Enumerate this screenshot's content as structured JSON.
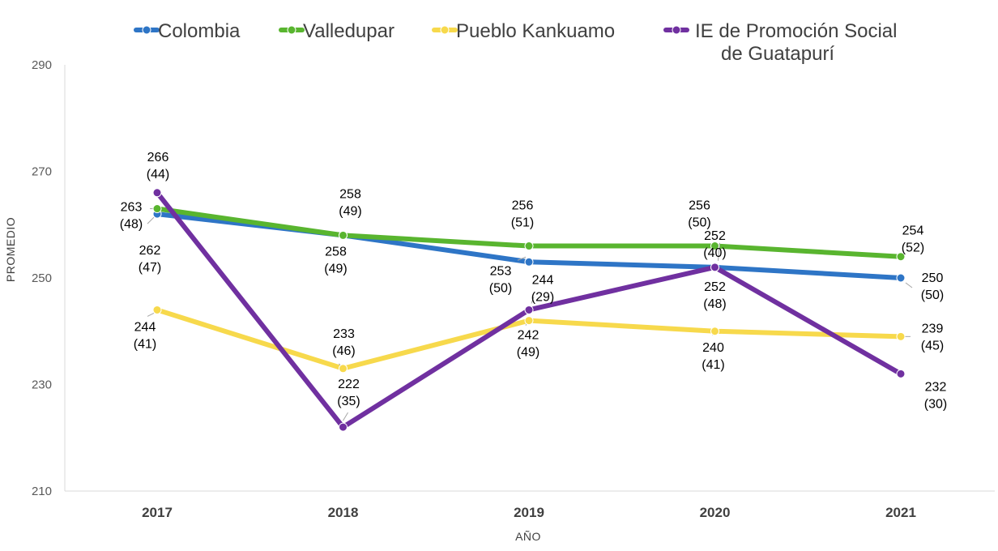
{
  "chart_data": {
    "type": "line",
    "xlabel": "AÑO",
    "ylabel": "PROMEDIO",
    "categories": [
      "2017",
      "2018",
      "2019",
      "2020",
      "2021"
    ],
    "ylim": [
      210,
      290
    ],
    "yticks": [
      210,
      230,
      250,
      270,
      290
    ],
    "grid": false,
    "legend_position": "top",
    "series": [
      {
        "name": "Colombia",
        "color": "#2E75C6",
        "values": [
          262,
          258,
          253,
          252,
          250
        ],
        "labels": [
          [
            "262",
            "(47)"
          ],
          [
            "258",
            "(49)"
          ],
          [
            "253",
            "(50)"
          ],
          [
            "252",
            "(40)"
          ],
          [
            "250",
            "(50)"
          ]
        ]
      },
      {
        "name": "Valledupar",
        "color": "#59B52F",
        "values": [
          263,
          258,
          256,
          256,
          254
        ],
        "labels": [
          [
            "263",
            "(48)"
          ],
          [
            "258",
            "(49)"
          ],
          [
            "256",
            "(51)"
          ],
          [
            "256",
            "(50)"
          ],
          [
            "254",
            "(52)"
          ]
        ]
      },
      {
        "name": "Pueblo Kankuamo",
        "color": "#F7D94C",
        "values": [
          244,
          233,
          242,
          240,
          239
        ],
        "labels": [
          [
            "244",
            "(41)"
          ],
          [
            "233",
            "(46)"
          ],
          [
            "242",
            "(49)"
          ],
          [
            "240",
            "(41)"
          ],
          [
            "239",
            "(45)"
          ]
        ]
      },
      {
        "name": "IE de Promoción Social de Guatapurí",
        "legend_lines": [
          "IE de Promoción Social",
          "de Guatapurí"
        ],
        "color": "#7030A0",
        "values": [
          266,
          222,
          244,
          252,
          232
        ],
        "labels": [
          [
            "266",
            "(44)"
          ],
          [
            "222",
            "(35)"
          ],
          [
            "244",
            "(29)"
          ],
          [
            "252",
            "(48)"
          ],
          [
            "232",
            "(30)"
          ]
        ]
      }
    ]
  }
}
